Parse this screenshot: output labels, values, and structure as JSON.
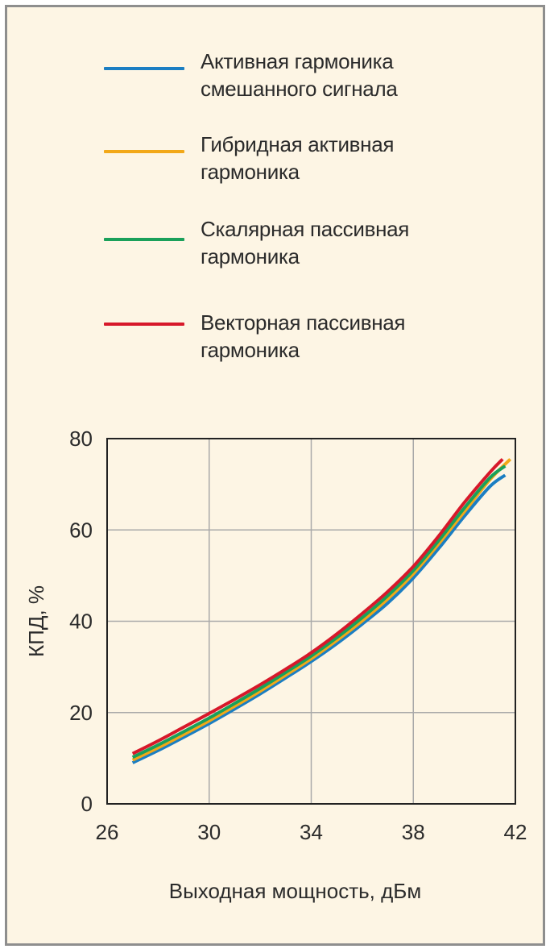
{
  "chart_data": {
    "type": "line",
    "title": "",
    "xlabel": "Выходная мощность, дБм",
    "ylabel": "КПД, %",
    "xlim": [
      26,
      42
    ],
    "ylim": [
      0,
      80
    ],
    "xticks": [
      26,
      30,
      34,
      38,
      42
    ],
    "yticks": [
      0,
      20,
      40,
      60,
      80
    ],
    "grid": true,
    "legend_position": "top",
    "series": [
      {
        "name": "Активная гармоника смешанного сигнала",
        "color": "#1b7ec2",
        "x": [
          27,
          28,
          29,
          30,
          31,
          32,
          33,
          34,
          35,
          36,
          37,
          38,
          39,
          40,
          41,
          41.6
        ],
        "y": [
          9,
          11.7,
          14.6,
          17.6,
          20.8,
          24.1,
          27.6,
          31.2,
          35.1,
          39.4,
          44,
          49.5,
          56,
          63,
          69.5,
          72
        ]
      },
      {
        "name": "Гибридная активная гармоника",
        "color": "#f2a818",
        "x": [
          27,
          28,
          29,
          30,
          31,
          32,
          33,
          34,
          35,
          36,
          37,
          38,
          39,
          40,
          41,
          41.8
        ],
        "y": [
          9.6,
          12.3,
          15.2,
          18.2,
          21.4,
          24.7,
          28.2,
          31.8,
          35.8,
          40.1,
          44.9,
          50.4,
          57,
          64,
          71,
          75.5
        ]
      },
      {
        "name": "Скалярная пассивная гармоника",
        "color": "#1aa05a",
        "x": [
          27,
          28,
          29,
          30,
          31,
          32,
          33,
          34,
          35,
          36,
          37,
          38,
          39,
          40,
          41,
          41.6
        ],
        "y": [
          10.2,
          12.9,
          15.8,
          18.8,
          22,
          25.3,
          28.8,
          32.4,
          36.4,
          40.8,
          45.6,
          51.1,
          57.7,
          64.8,
          71.4,
          74
        ]
      },
      {
        "name": "Векторная пассивная гармоника",
        "color": "#d7182a",
        "x": [
          27,
          28,
          29,
          30,
          31,
          32,
          33,
          34,
          35,
          36,
          37,
          38,
          39,
          40,
          41,
          41.5
        ],
        "y": [
          11,
          13.8,
          16.8,
          19.8,
          22.9,
          26.1,
          29.5,
          33.1,
          37.2,
          41.7,
          46.5,
          52,
          58.7,
          66,
          72.6,
          75.5
        ]
      }
    ]
  }
}
